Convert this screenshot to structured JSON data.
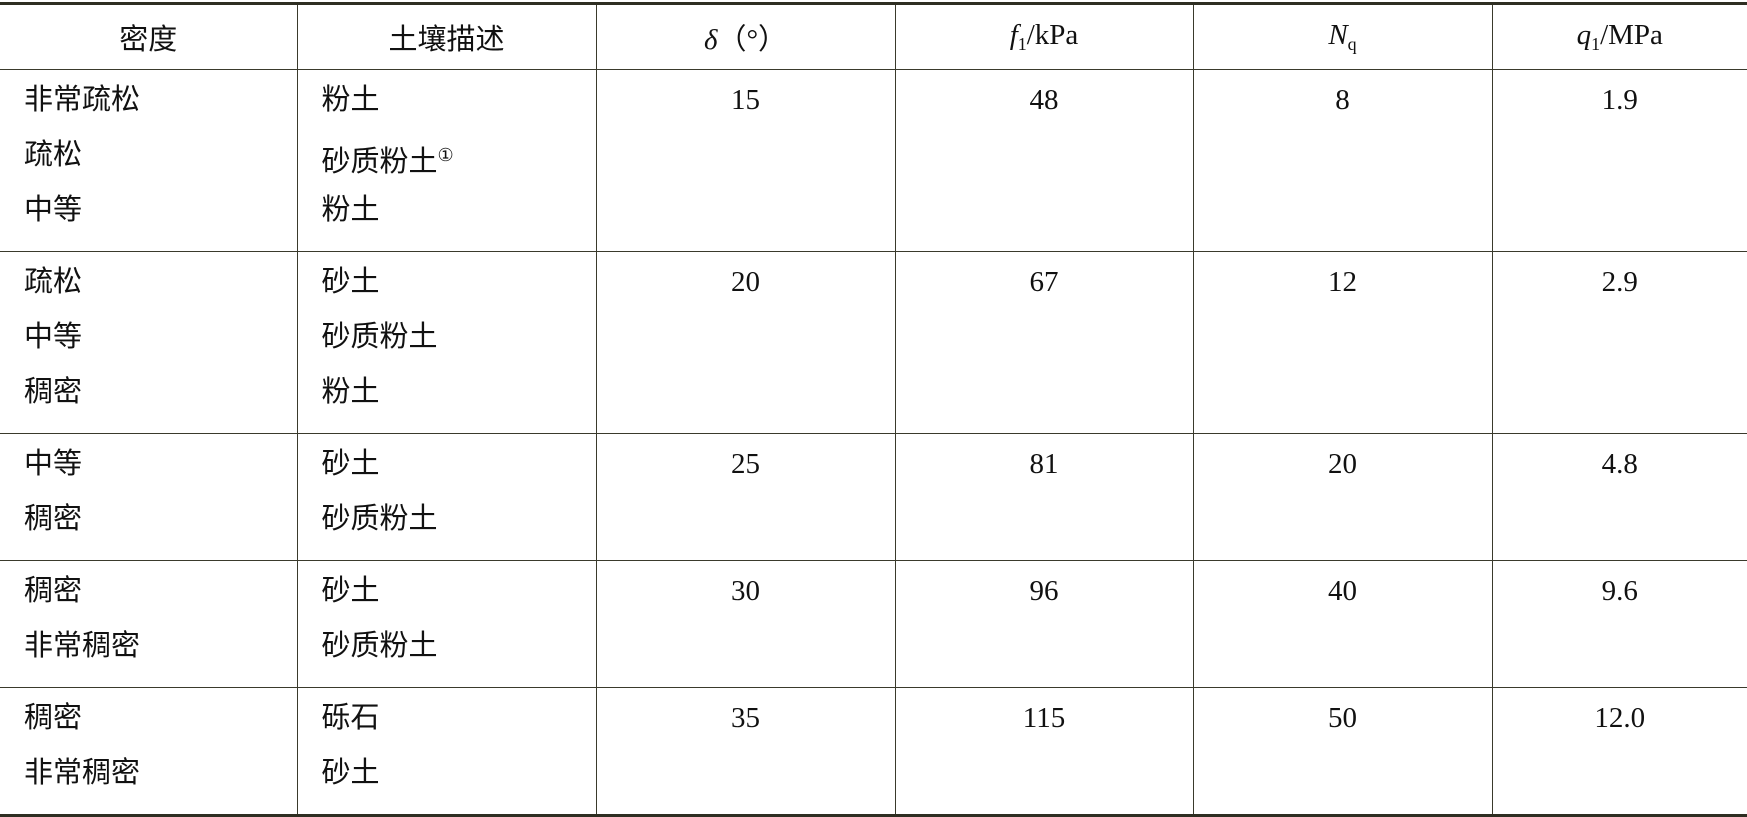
{
  "headers": {
    "density": "密度",
    "soil": "土壤描述",
    "delta_sym": "δ",
    "delta_unit": "（°）",
    "f_sym": "f",
    "f_sub": "1",
    "f_unit": "/kPa",
    "n_sym": "N",
    "n_sub": "q",
    "q_sym": "q",
    "q_sub": "1",
    "q_unit": "/MPa"
  },
  "rows": [
    {
      "density": [
        "非常疏松",
        "疏松",
        "中等"
      ],
      "soil": [
        "粉土",
        "砂质粉土",
        "粉土"
      ],
      "footnote": "①",
      "delta": "15",
      "f1": "48",
      "nq": "8",
      "q1": "1.9"
    },
    {
      "density": [
        "疏松",
        "中等",
        "稠密"
      ],
      "soil": [
        "砂土",
        "砂质粉土",
        "粉土"
      ],
      "delta": "20",
      "f1": "67",
      "nq": "12",
      "q1": "2.9"
    },
    {
      "density": [
        "中等",
        "稠密"
      ],
      "soil": [
        "砂土",
        "砂质粉土"
      ],
      "delta": "25",
      "f1": "81",
      "nq": "20",
      "q1": "4.8"
    },
    {
      "density": [
        "稠密",
        "非常稠密"
      ],
      "soil": [
        "砂土",
        "砂质粉土"
      ],
      "delta": "30",
      "f1": "96",
      "nq": "40",
      "q1": "9.6"
    },
    {
      "density": [
        "稠密",
        "非常稠密"
      ],
      "soil": [
        "砾石",
        "砂土"
      ],
      "delta": "35",
      "f1": "115",
      "nq": "50",
      "q1": "12.0"
    }
  ]
}
